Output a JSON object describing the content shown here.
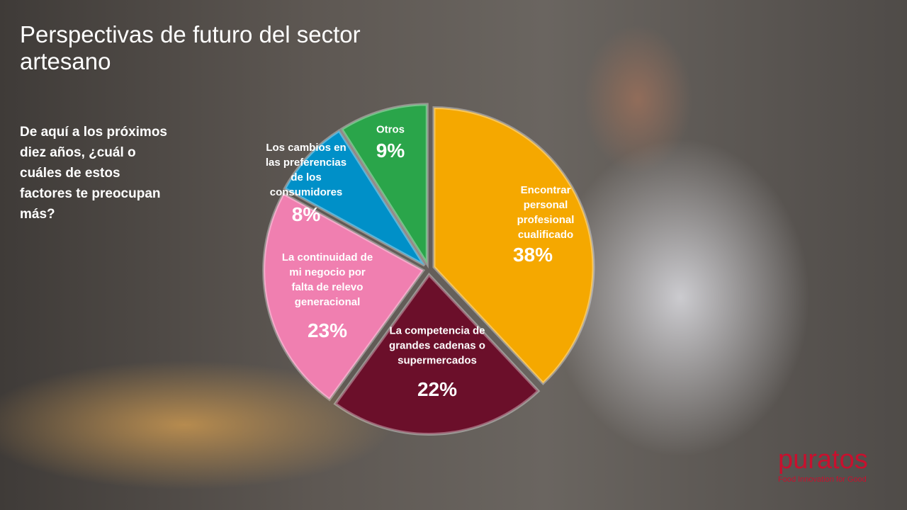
{
  "chart_data": {
    "type": "pie",
    "title": "Perspectivas de futuro del sector artesano",
    "subtitle": "De aquí a los próximos diez años, ¿cuál o cuáles de estos factores te preocupan más?",
    "categories": [
      "Encontrar personal profesional cualificado",
      "La competencia de grandes cadenas o supermercados",
      "La continuidad de mi negocio por falta de relevo generacional",
      "Los cambios en las preferencias de los consumidores",
      "Otros"
    ],
    "values": [
      38,
      22,
      23,
      8,
      9
    ],
    "value_labels": [
      "38%",
      "22%",
      "23%",
      "8%",
      "9%"
    ],
    "colors": [
      "#f5a800",
      "#6b0f2a",
      "#f07fb0",
      "#0090c8",
      "#2aa54a"
    ]
  },
  "logo": {
    "brand": "puratos",
    "tagline": "Food Innovation for Good"
  }
}
